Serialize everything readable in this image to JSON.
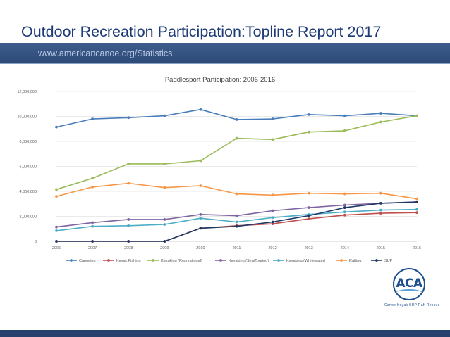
{
  "slide": {
    "title": "Outdoor Recreation Participation:Topline Report 2017",
    "url": "www.americancanoe.org/Statistics"
  },
  "logo": {
    "text": "ACA",
    "tagline": "Canoe Kayak SUP Raft Rescue",
    "colors": {
      "primary": "#1d4f8f",
      "accent": "#5aa0d8"
    }
  },
  "chart_data": {
    "type": "line",
    "title": "Paddlesport Participation: 2006-2016",
    "xlabel": "",
    "ylabel": "",
    "categories": [
      "2006",
      "2007",
      "2008",
      "2009",
      "2010",
      "2011",
      "2012",
      "2013",
      "2014",
      "2015",
      "2016"
    ],
    "ylim": [
      0,
      12000000
    ],
    "yticks": [
      0,
      2000000,
      4000000,
      6000000,
      8000000,
      10000000,
      12000000
    ],
    "ytick_labels": [
      "0",
      "2,000,000",
      "4,000,000",
      "6,000,000",
      "8,000,000",
      "10,000,000",
      "12,000,000"
    ],
    "grid": "horizontal",
    "legend_position": "bottom",
    "series": [
      {
        "name": "Canoeing",
        "color": "#4a7ebb",
        "values": [
          9150000,
          9800000,
          9900000,
          10050000,
          10550000,
          9750000,
          9800000,
          10150000,
          10050000,
          10250000,
          10050000
        ]
      },
      {
        "name": "Kayak Fishing",
        "color": "#c0504d",
        "values": [
          0,
          0,
          0,
          0,
          1050000,
          1250000,
          1400000,
          1800000,
          2100000,
          2250000,
          2300000
        ]
      },
      {
        "name": "Kayaking (Recreational)",
        "color": "#9bbb59",
        "values": [
          4150000,
          5050000,
          6200000,
          6200000,
          6450000,
          8250000,
          8150000,
          8750000,
          8850000,
          9550000,
          10050000
        ]
      },
      {
        "name": "Kayaking (Sea/Touring)",
        "color": "#8064a2",
        "values": [
          1150000,
          1500000,
          1750000,
          1750000,
          2150000,
          2050000,
          2450000,
          2700000,
          2900000,
          3050000,
          3150000
        ]
      },
      {
        "name": "Kayaking (Whitewater)",
        "color": "#4bacc6",
        "values": [
          850000,
          1200000,
          1250000,
          1350000,
          1850000,
          1550000,
          1900000,
          2150000,
          2350000,
          2500000,
          2550000
        ]
      },
      {
        "name": "Rafting",
        "color": "#f79646",
        "values": [
          3600000,
          4350000,
          4650000,
          4300000,
          4450000,
          3800000,
          3700000,
          3850000,
          3800000,
          3850000,
          3400000
        ]
      },
      {
        "name": "SUP",
        "color": "#1f3864",
        "values": [
          0,
          0,
          0,
          0,
          1050000,
          1200000,
          1550000,
          2050000,
          2700000,
          3050000,
          3150000
        ]
      }
    ]
  }
}
